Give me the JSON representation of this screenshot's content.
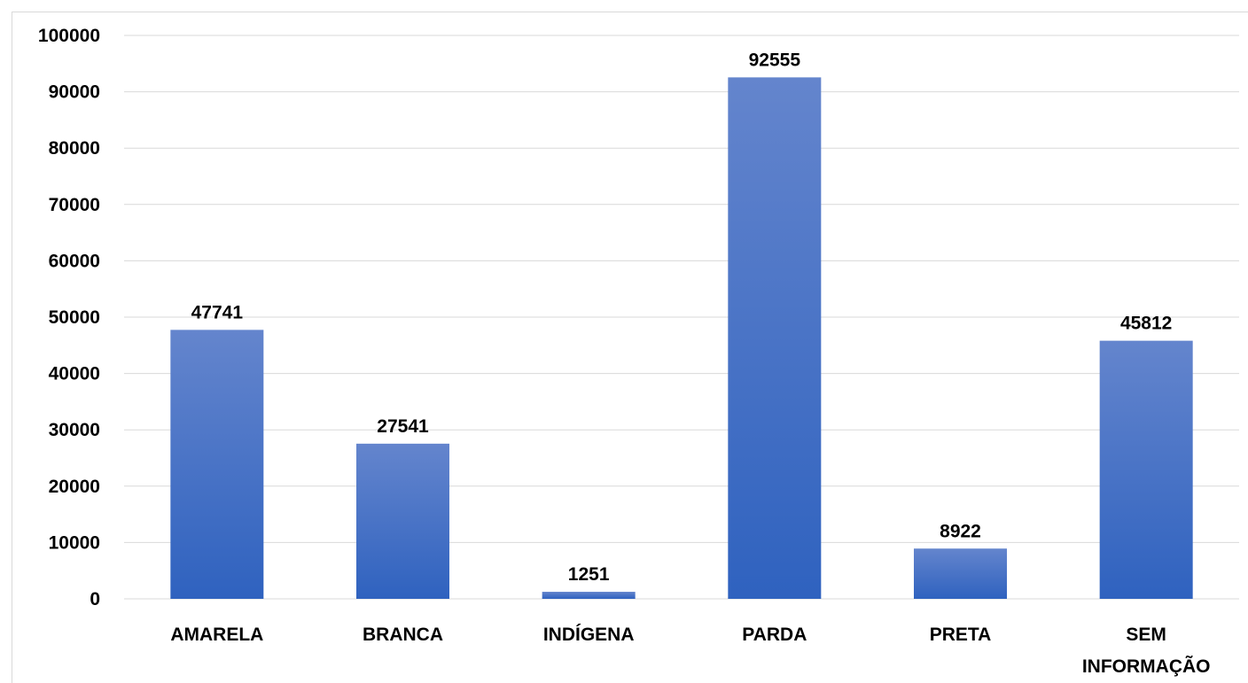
{
  "chart_data": {
    "type": "bar",
    "categories": [
      "AMARELA",
      "BRANCA",
      "INDÍGENA",
      "PARDA",
      "PRETA",
      "SEM INFORMAÇÃO"
    ],
    "values": [
      47741,
      27541,
      1251,
      92555,
      8922,
      45812
    ],
    "ylim": [
      0,
      100000
    ],
    "yticks": [
      0,
      10000,
      20000,
      30000,
      40000,
      50000,
      60000,
      70000,
      80000,
      90000,
      100000
    ],
    "grid": true,
    "data_labels": true,
    "colors": {
      "bar_top": "#6485cd",
      "bar_bottom": "#2f62bf",
      "grid": "#d9d9d9"
    }
  }
}
